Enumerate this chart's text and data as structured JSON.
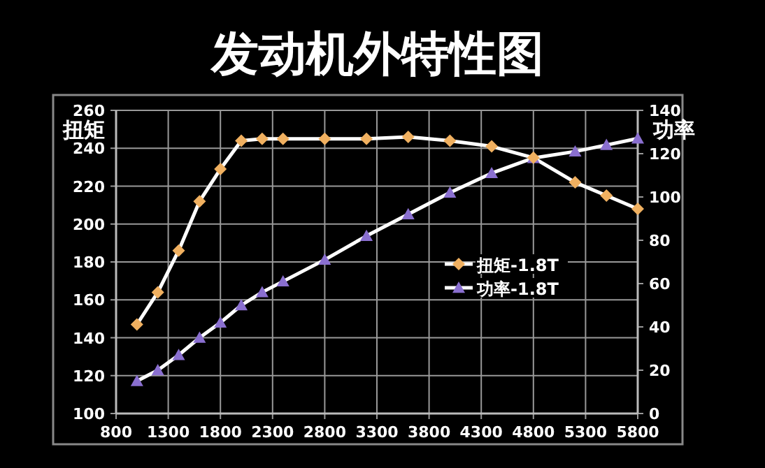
{
  "chart_data": {
    "type": "line",
    "title": "发动机外特性图",
    "ylabel": "扭矩",
    "y2label": "功率",
    "xlim": [
      800,
      5800
    ],
    "xticks": [
      800,
      1300,
      1800,
      2300,
      2800,
      3300,
      3800,
      4300,
      4800,
      5300,
      5800
    ],
    "ylim": [
      100,
      260
    ],
    "yticks": [
      100,
      120,
      140,
      160,
      180,
      200,
      220,
      240,
      260
    ],
    "y2lim": [
      0,
      140
    ],
    "y2ticks": [
      0,
      20,
      40,
      60,
      80,
      100,
      120,
      140
    ],
    "grid": true,
    "legend": "right",
    "line_style": "solid",
    "x": [
      1000,
      1200,
      1400,
      1600,
      1800,
      2000,
      2200,
      2400,
      2800,
      3200,
      3600,
      4000,
      4400,
      4800,
      5200,
      5500,
      5800
    ],
    "series": [
      {
        "name": "扭矩-1.8T",
        "color": "#f0b060",
        "marker": "diamond",
        "values": [
          147,
          164,
          186,
          212,
          229,
          244,
          245,
          245,
          245,
          245,
          246,
          244,
          241,
          235,
          222,
          215,
          208
        ]
      },
      {
        "name": "功率-1.8T",
        "color": "#8a6fd0",
        "marker": "triangle",
        "axis": "y2",
        "values": [
          15,
          20,
          27,
          35,
          42,
          50,
          56,
          61,
          71,
          82,
          92,
          102,
          111,
          118,
          121,
          124,
          127
        ]
      }
    ]
  }
}
